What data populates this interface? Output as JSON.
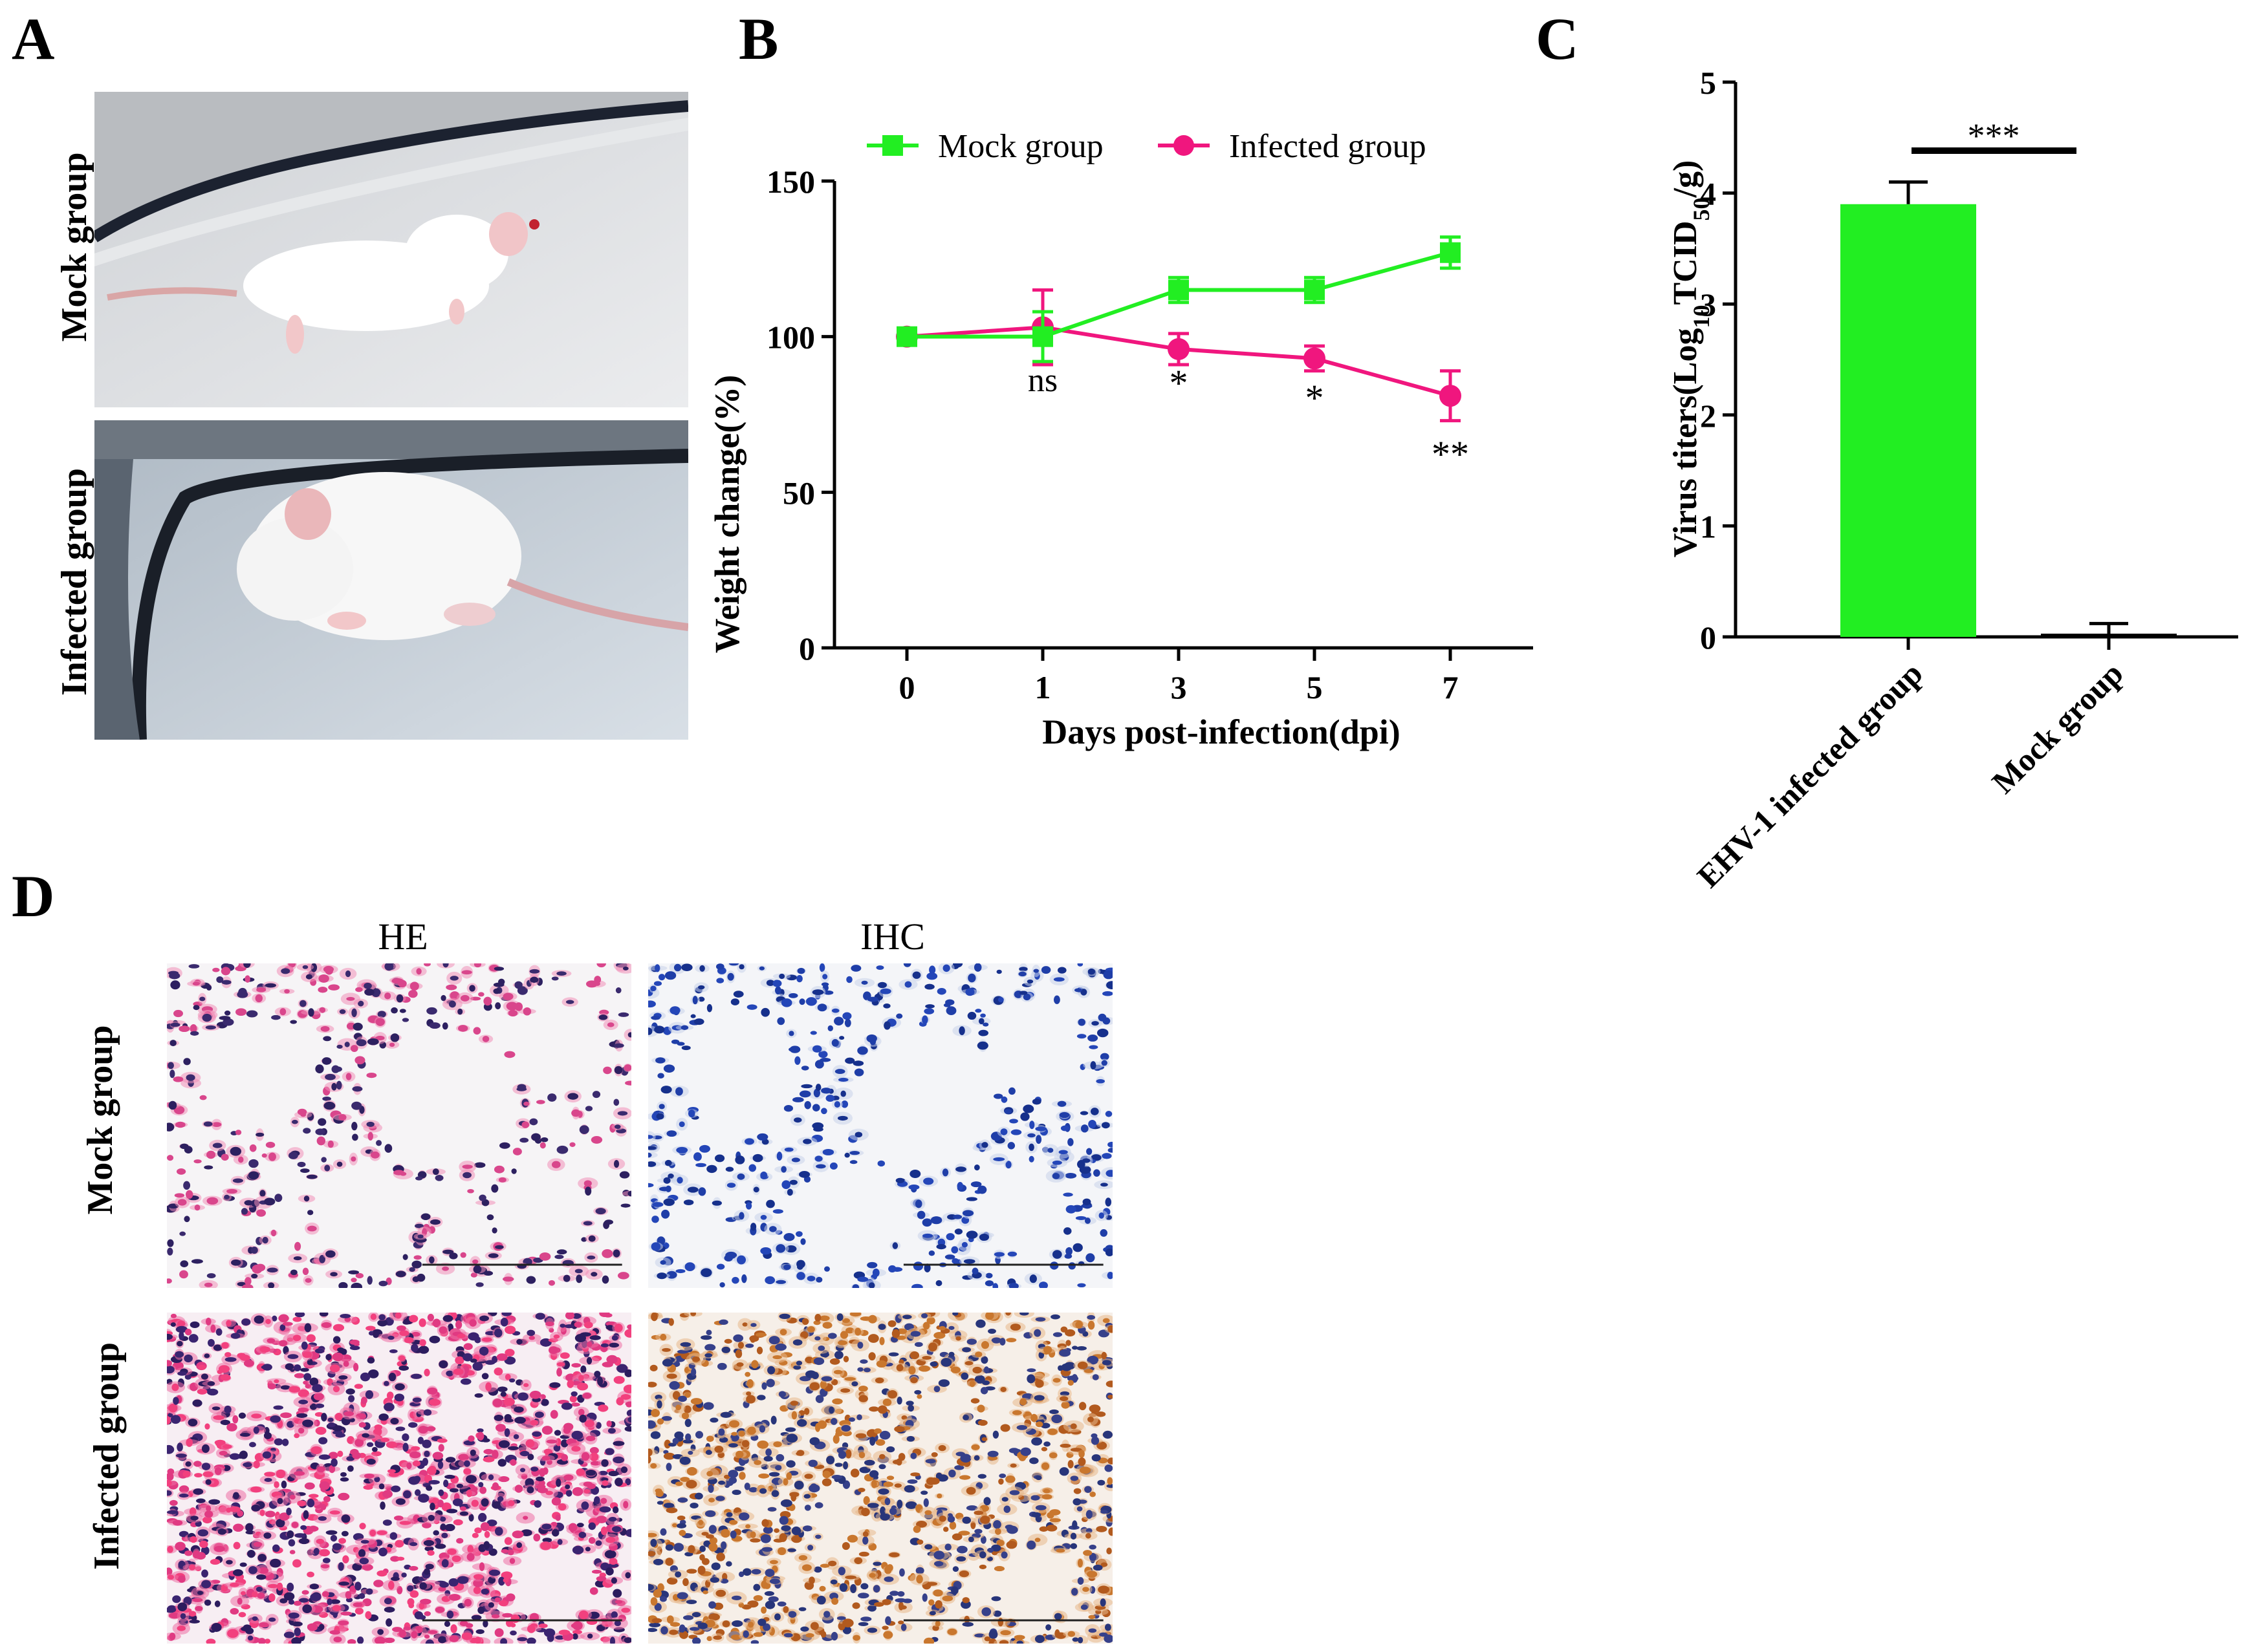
{
  "panels": {
    "a": {
      "letter": "A",
      "row_labels": [
        "Mock group",
        "Infected group"
      ]
    },
    "b": {
      "letter": "B"
    },
    "c": {
      "letter": "C"
    },
    "d": {
      "letter": "D",
      "col_labels": [
        "HE",
        "IHC"
      ],
      "row_labels": [
        "Mock group",
        "Infected group"
      ]
    }
  },
  "colors": {
    "mock": "#22ee22",
    "infected": "#f0167e",
    "bar": "#22ee22"
  },
  "chart_data": [
    {
      "type": "line",
      "x": [
        0,
        1,
        3,
        5,
        7
      ],
      "categories": [
        "0",
        "1",
        "3",
        "5",
        "7"
      ],
      "xlabel": "Days post-infection(dpi)",
      "ylabel": "Weight change(%)",
      "ylim": [
        0,
        150
      ],
      "yticks": [
        0,
        50,
        100,
        150
      ],
      "legend": "top",
      "series": [
        {
          "name": "Mock group",
          "marker": "square",
          "values": [
            100,
            100,
            115,
            115,
            127
          ],
          "errors": [
            0,
            8,
            4,
            4,
            5
          ]
        },
        {
          "name": "Infected group",
          "marker": "circle",
          "values": [
            100,
            103,
            96,
            93,
            81
          ],
          "errors": [
            0,
            12,
            5,
            4,
            8
          ]
        }
      ],
      "annotations": [
        {
          "x": 1,
          "text": "ns"
        },
        {
          "x": 3,
          "text": "*"
        },
        {
          "x": 5,
          "text": "*"
        },
        {
          "x": 7,
          "text": "**"
        }
      ]
    },
    {
      "type": "bar",
      "categories": [
        "EHV-1 infected group",
        "Mock group"
      ],
      "values": [
        3.9,
        0.02
      ],
      "errors": [
        0.2,
        0.1
      ],
      "ylabel": "Virus titers(Log10TCID50/g)",
      "ylim": [
        0,
        5
      ],
      "yticks": [
        0,
        1,
        2,
        3,
        4,
        5
      ],
      "significance": "***"
    }
  ]
}
